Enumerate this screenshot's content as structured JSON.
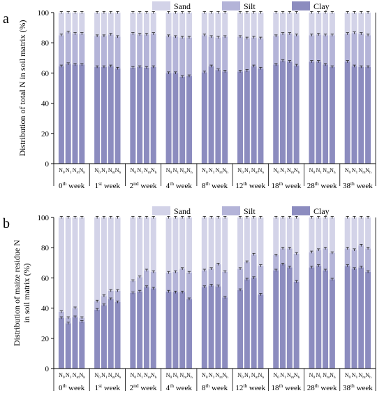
{
  "colors": {
    "clay": "#8c8cbf",
    "silt": "#b4b4d8",
    "sand": "#d3d3e8",
    "axis": "#000000"
  },
  "chart_data": [
    {
      "panel_label": "a",
      "type": "bar",
      "stacked": true,
      "ylabel": "Distribution of  total N in soil matrix (%)",
      "ylim": [
        0,
        100
      ],
      "yticks": [
        0,
        20,
        40,
        60,
        80,
        100
      ],
      "legend": [
        "Sand",
        "Silt",
        "Clay"
      ],
      "legend_position": "top-right",
      "groups": [
        "0th week",
        "1st week",
        "2nd week",
        "4th week",
        "8th week",
        "12th week",
        "18th week",
        "28th week",
        "38th week"
      ],
      "bar_labels": [
        "N0",
        "N1",
        "Nm",
        "Nh"
      ],
      "series": [
        {
          "name": "Clay",
          "values": [
            [
              64.5,
              66,
              65.5,
              65.5
            ],
            [
              64,
              64,
              64.5,
              63
            ],
            [
              63.5,
              64,
              63.5,
              64
            ],
            [
              60,
              60,
              57.5,
              58
            ],
            [
              60.5,
              64.5,
              62,
              61
            ],
            [
              61,
              61.5,
              64.5,
              63
            ],
            [
              65.5,
              68,
              67.5,
              65
            ],
            [
              67.5,
              67.5,
              65.5,
              64
            ],
            [
              67.5,
              64.5,
              64,
              64
            ]
          ]
        },
        {
          "name": "Silt",
          "values": [
            [
              20.5,
              21,
              20.5,
              20.5
            ],
            [
              20.5,
              20.5,
              21,
              21
            ],
            [
              22.5,
              21.5,
              22,
              22
            ],
            [
              24.5,
              24,
              26,
              25.5
            ],
            [
              24.5,
              19.5,
              21.5,
              23
            ],
            [
              23,
              21.5,
              19,
              20
            ],
            [
              19,
              18,
              18.5,
              20
            ],
            [
              17.5,
              18,
              19.5,
              21
            ],
            [
              18.5,
              22,
              22,
              21
            ]
          ]
        },
        {
          "name": "Sand",
          "values": [
            [
              15,
              13,
              14,
              14
            ],
            [
              15.5,
              15.5,
              14.5,
              16
            ],
            [
              14,
              14.5,
              14.5,
              14
            ],
            [
              15.5,
              16,
              16.5,
              16.5
            ],
            [
              15,
              16,
              16.5,
              16
            ],
            [
              16,
              17,
              16.5,
              17
            ],
            [
              15.5,
              14,
              14,
              15
            ],
            [
              15,
              14.5,
              15,
              15
            ],
            [
              14,
              13.5,
              14,
              15
            ]
          ]
        }
      ]
    },
    {
      "panel_label": "b",
      "type": "bar",
      "stacked": true,
      "ylabel_lines": [
        "Distribution of maize residue N",
        "in soil matrix (%)"
      ],
      "ylim": [
        0,
        100
      ],
      "yticks": [
        0,
        20,
        40,
        60,
        80,
        100
      ],
      "legend": [
        "Sand",
        "Silt",
        "Clay"
      ],
      "legend_position": "top-right",
      "groups": [
        "0th week",
        "1st week",
        "2nd week",
        "4th week",
        "8th week",
        "12th week",
        "18th week",
        "28th week",
        "38th week"
      ],
      "bar_labels": [
        "N0",
        "N1",
        "Nm",
        "Nh"
      ],
      "series": [
        {
          "name": "Clay",
          "values": [
            [
              33.5,
              30,
              34,
              31
            ],
            [
              39,
              42,
              46,
              44
            ],
            [
              50,
              51,
              54,
              53
            ],
            [
              51,
              50.5,
              50.5,
              46
            ],
            [
              54,
              55,
              54.5,
              47
            ],
            [
              52,
              59,
              60,
              49
            ],
            [
              65,
              69,
              67,
              57.5
            ],
            [
              67,
              68,
              65,
              59
            ],
            [
              68,
              66,
              67,
              64
            ]
          ]
        },
        {
          "name": "Silt",
          "values": [
            [
              4,
              3.5,
              6,
              2.5
            ],
            [
              5.5,
              6,
              5.5,
              7.5
            ],
            [
              8,
              9.5,
              11,
              11
            ],
            [
              12.5,
              13.5,
              15.5,
              17.5
            ],
            [
              11,
              11,
              14.5,
              17
            ],
            [
              14,
              11.5,
              15.5,
              19
            ],
            [
              10,
              10.5,
              12.5,
              18.5
            ],
            [
              10,
              10.5,
              14.5,
              17.5
            ],
            [
              11.5,
              12.5,
              14.5,
              15.5
            ]
          ]
        },
        {
          "name": "Sand",
          "values": [
            [
              62.5,
              66.5,
              60,
              66.5
            ],
            [
              55.5,
              52,
              48.5,
              48.5
            ],
            [
              42,
              39.5,
              35,
              36
            ],
            [
              36.5,
              36,
              34,
              36.5
            ],
            [
              35,
              34,
              31,
              36
            ],
            [
              34,
              29.5,
              24.5,
              32
            ],
            [
              25,
              20.5,
              20.5,
              24
            ],
            [
              23,
              21.5,
              20.5,
              23.5
            ],
            [
              20.5,
              21.5,
              18.5,
              20.5
            ]
          ]
        }
      ]
    }
  ]
}
